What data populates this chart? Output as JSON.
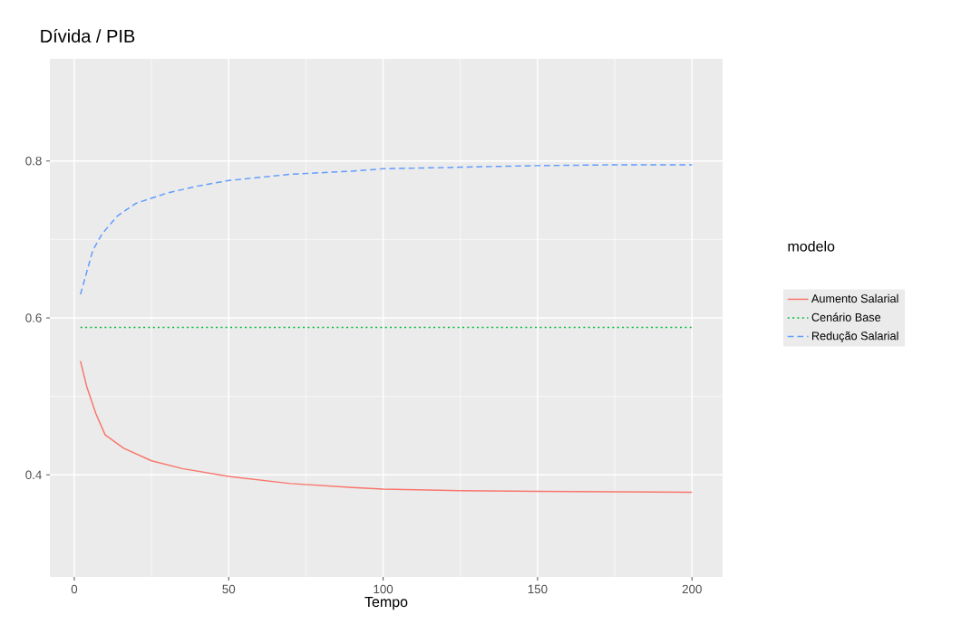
{
  "chart_data": {
    "type": "line",
    "title": "Dívida / PIB",
    "xlabel": "Tempo",
    "legend_title": "modelo",
    "legend": "right",
    "grid": true,
    "xlim": [
      -7.9,
      209.9
    ],
    "ylim": [
      0.27,
      0.93
    ],
    "xticks": [
      0,
      50,
      100,
      150,
      200
    ],
    "yticks": [
      0.4,
      0.6,
      0.8
    ],
    "series": [
      {
        "name": "Aumento Salarial",
        "color": "#f8766d",
        "line_style": "solid",
        "x": [
          2,
          4,
          7,
          10,
          16,
          25,
          35,
          50,
          70,
          90,
          100,
          125,
          150,
          200
        ],
        "values": [
          0.545,
          0.513,
          0.478,
          0.451,
          0.434,
          0.418,
          0.408,
          0.398,
          0.389,
          0.384,
          0.382,
          0.38,
          0.379,
          0.378
        ]
      },
      {
        "name": "Cenário Base",
        "color": "#00ba38",
        "line_style": "dotted",
        "x": [
          2,
          200
        ],
        "values": [
          0.588,
          0.588
        ]
      },
      {
        "name": "Redução Salarial",
        "color": "#619cff",
        "line_style": "dashed",
        "x": [
          2,
          6,
          9,
          14,
          20,
          30,
          40,
          50,
          70,
          90,
          100,
          125,
          150,
          175,
          200
        ],
        "values": [
          0.63,
          0.686,
          0.707,
          0.73,
          0.746,
          0.759,
          0.768,
          0.775,
          0.783,
          0.787,
          0.79,
          0.792,
          0.794,
          0.795,
          0.795
        ]
      }
    ]
  }
}
